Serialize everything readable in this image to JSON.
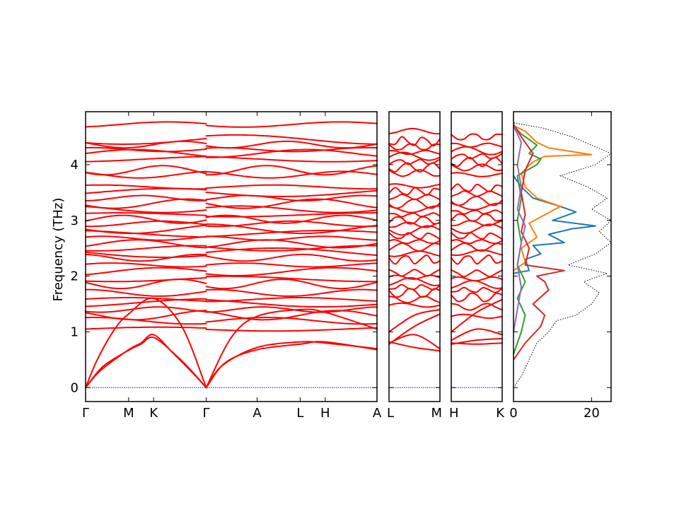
{
  "chart_data": {
    "type": "line",
    "ylabel": "Frequency (THz)",
    "ylim": [
      -0.25,
      4.95
    ],
    "yticks": [
      "0",
      "1",
      "2",
      "3",
      "4"
    ],
    "band_color": "#ff0000",
    "zero_line_color": "#0000ff",
    "panels": [
      {
        "id": "band-panel-main",
        "path_labels": [
          "Γ",
          "M",
          "K",
          "Γ",
          "A",
          "L",
          "H",
          "A"
        ],
        "path_positions": [
          0,
          0.1477,
          0.2336,
          0.4139,
          0.5888,
          0.7364,
          0.8224,
          1.0
        ],
        "branch_break": 3,
        "acoustic_bands": [
          [
            [
              0,
              0
            ],
            [
              0.05,
              0.3
            ],
            [
              0.1477,
              0.68
            ],
            [
              0.19,
              0.8
            ],
            [
              0.2336,
              0.95
            ],
            [
              0.3,
              0.62
            ],
            [
              0.37,
              0.25
            ],
            [
              0.4139,
              0
            ]
          ],
          [
            [
              0,
              0
            ],
            [
              0.06,
              0.38
            ],
            [
              0.1477,
              0.67
            ],
            [
              0.19,
              0.78
            ],
            [
              0.2336,
              0.9
            ],
            [
              0.31,
              0.58
            ],
            [
              0.36,
              0.32
            ],
            [
              0.4139,
              0
            ]
          ],
          [
            [
              0,
              0
            ],
            [
              0.04,
              0.5
            ],
            [
              0.1,
              1.05
            ],
            [
              0.1477,
              1.32
            ],
            [
              0.2336,
              1.6
            ],
            [
              0.33,
              1.1
            ],
            [
              0.4139,
              0
            ]
          ],
          [
            [
              0.4139,
              0
            ],
            [
              0.47,
              0.4
            ],
            [
              0.5888,
              0.72
            ],
            [
              0.7364,
              0.82
            ],
            [
              0.8224,
              0.8
            ],
            [
              1.0,
              0.7
            ]
          ],
          [
            [
              0.4139,
              0
            ],
            [
              0.48,
              0.45
            ],
            [
              0.5888,
              0.68
            ],
            [
              0.7364,
              0.78
            ],
            [
              0.8224,
              0.82
            ],
            [
              1.0,
              0.68
            ]
          ],
          [
            [
              0.4139,
              0
            ],
            [
              0.5,
              0.9
            ],
            [
              0.5888,
              1.28
            ],
            [
              0.7364,
              1.4
            ],
            [
              0.8224,
              1.35
            ],
            [
              1.0,
              1.05
            ]
          ]
        ],
        "optical_levels": [
          1.05,
          1.2,
          1.3,
          1.4,
          1.52,
          1.58,
          1.7,
          1.86,
          1.95,
          2.08,
          2.2,
          2.33,
          2.42,
          2.5,
          2.58,
          2.68,
          2.76,
          2.85,
          2.94,
          3.02,
          3.1,
          3.2,
          3.3,
          3.4,
          3.5,
          3.6,
          3.82,
          3.9,
          4.1,
          4.2,
          4.27,
          4.36,
          4.45,
          4.72
        ]
      },
      {
        "id": "band-panel-lm",
        "path_labels": [
          "L",
          "M"
        ],
        "path_positions": [
          0,
          1.0
        ],
        "acoustic_bands": [
          [
            [
              0,
              0.82
            ],
            [
              0.5,
              0.72
            ],
            [
              1.0,
              0.66
            ]
          ],
          [
            [
              0,
              0.8
            ],
            [
              0.5,
              0.95
            ],
            [
              1.0,
              0.7
            ]
          ],
          [
            [
              0,
              0.78
            ],
            [
              0.5,
              1.1
            ],
            [
              1.0,
              1.32
            ]
          ],
          [
            [
              0,
              1.0
            ],
            [
              0.5,
              1.3
            ],
            [
              1.0,
              1.4
            ]
          ]
        ],
        "optical_levels": [
          1.48,
          1.58,
          1.7,
          1.8,
          1.9,
          1.98,
          2.06,
          2.3,
          2.4,
          2.52,
          2.62,
          2.72,
          2.82,
          2.92,
          3.0,
          3.1,
          3.2,
          3.3,
          3.42,
          3.52,
          3.62,
          3.85,
          3.95,
          4.05,
          4.15,
          4.22,
          4.32,
          4.42,
          4.6
        ]
      },
      {
        "id": "band-panel-hk",
        "path_labels": [
          "H",
          "K"
        ],
        "path_positions": [
          0,
          1.0
        ],
        "acoustic_bands": [
          [
            [
              0,
              0.8
            ],
            [
              0.5,
              0.78
            ],
            [
              1.0,
              0.8
            ]
          ],
          [
            [
              0,
              0.85
            ],
            [
              0.5,
              1.05
            ],
            [
              1.0,
              0.95
            ]
          ],
          [
            [
              0,
              1.0
            ],
            [
              0.5,
              1.35
            ],
            [
              1.0,
              1.58
            ]
          ],
          [
            [
              0,
              0.78
            ],
            [
              0.5,
              0.85
            ],
            [
              1.0,
              0.88
            ]
          ]
        ],
        "optical_levels": [
          1.28,
          1.45,
          1.62,
          1.75,
          1.85,
          1.95,
          2.05,
          2.3,
          2.42,
          2.52,
          2.62,
          2.72,
          2.85,
          2.95,
          3.05,
          3.15,
          3.25,
          3.35,
          3.48,
          3.58,
          3.82,
          3.95,
          4.05,
          4.15,
          4.25,
          4.35,
          4.5
        ]
      }
    ],
    "dos_panel": {
      "xlim": [
        0,
        25
      ],
      "xticks": [
        "0",
        "20"
      ],
      "series": [
        {
          "color": "#000000",
          "style": "dotted",
          "points": [
            [
              0,
              0
            ],
            [
              2,
              0.2
            ],
            [
              4,
              0.5
            ],
            [
              6,
              0.8
            ],
            [
              9,
              1.0
            ],
            [
              11,
              1.2
            ],
            [
              16,
              1.3
            ],
            [
              20,
              1.5
            ],
            [
              22,
              1.7
            ],
            [
              18,
              1.9
            ],
            [
              24,
              2.05
            ],
            [
              14,
              2.2
            ],
            [
              21,
              2.4
            ],
            [
              25,
              2.6
            ],
            [
              22,
              2.8
            ],
            [
              25,
              3.0
            ],
            [
              20,
              3.2
            ],
            [
              24,
              3.4
            ],
            [
              19,
              3.6
            ],
            [
              12,
              3.8
            ],
            [
              21,
              4.0
            ],
            [
              25,
              4.2
            ],
            [
              20,
              4.35
            ],
            [
              15,
              4.5
            ],
            [
              8,
              4.65
            ],
            [
              0,
              4.75
            ]
          ]
        },
        {
          "color": "#1f77b4",
          "points": [
            [
              0,
              2.05
            ],
            [
              4,
              2.1
            ],
            [
              3,
              2.3
            ],
            [
              7,
              2.4
            ],
            [
              5,
              2.55
            ],
            [
              13,
              2.6
            ],
            [
              9,
              2.75
            ],
            [
              15,
              2.85
            ],
            [
              21,
              2.9
            ],
            [
              10,
              3.0
            ],
            [
              16,
              3.15
            ],
            [
              12,
              3.25
            ],
            [
              5,
              3.4
            ],
            [
              2,
              3.6
            ],
            [
              0,
              3.8
            ]
          ]
        },
        {
          "color": "#ff7f0e",
          "points": [
            [
              0,
              2.1
            ],
            [
              3,
              2.25
            ],
            [
              2,
              2.5
            ],
            [
              6,
              2.7
            ],
            [
              4,
              2.95
            ],
            [
              8,
              3.1
            ],
            [
              12,
              3.25
            ],
            [
              6,
              3.4
            ],
            [
              3,
              3.6
            ],
            [
              2,
              3.85
            ],
            [
              5,
              4.05
            ],
            [
              8,
              4.15
            ],
            [
              20,
              4.18
            ],
            [
              9,
              4.3
            ],
            [
              6,
              4.4
            ],
            [
              3,
              4.6
            ],
            [
              0,
              4.7
            ]
          ]
        },
        {
          "color": "#2ca02c",
          "points": [
            [
              0,
              0.6
            ],
            [
              2,
              1.0
            ],
            [
              3,
              1.3
            ],
            [
              1,
              1.6
            ],
            [
              3,
              1.9
            ],
            [
              1,
              2.2
            ],
            [
              2,
              2.6
            ],
            [
              1,
              3.0
            ],
            [
              2,
              3.4
            ],
            [
              1,
              3.8
            ],
            [
              6,
              4.0
            ],
            [
              7,
              4.1
            ],
            [
              4,
              4.2
            ],
            [
              6,
              4.35
            ],
            [
              2,
              4.55
            ],
            [
              0,
              4.7
            ]
          ]
        },
        {
          "color": "#d62728",
          "points": [
            [
              0,
              0.5
            ],
            [
              3,
              0.8
            ],
            [
              5,
              0.95
            ],
            [
              7,
              1.1
            ],
            [
              8,
              1.3
            ],
            [
              5,
              1.5
            ],
            [
              9,
              1.75
            ],
            [
              8,
              1.9
            ],
            [
              6,
              2.0
            ],
            [
              13,
              2.1
            ],
            [
              3,
              2.2
            ],
            [
              4,
              2.5
            ],
            [
              2,
              2.8
            ],
            [
              3,
              3.1
            ],
            [
              2,
              3.5
            ],
            [
              3,
              3.9
            ],
            [
              5,
              4.2
            ],
            [
              2,
              4.5
            ],
            [
              0,
              4.72
            ]
          ]
        },
        {
          "color": "#9467bd",
          "points": [
            [
              0,
              1.0
            ],
            [
              1,
              1.4
            ],
            [
              2,
              1.8
            ],
            [
              1,
              2.2
            ],
            [
              2,
              2.6
            ],
            [
              3,
              2.9
            ],
            [
              1,
              3.2
            ],
            [
              2,
              3.6
            ],
            [
              1,
              4.0
            ],
            [
              2,
              4.4
            ],
            [
              0,
              4.7
            ]
          ]
        }
      ]
    }
  }
}
